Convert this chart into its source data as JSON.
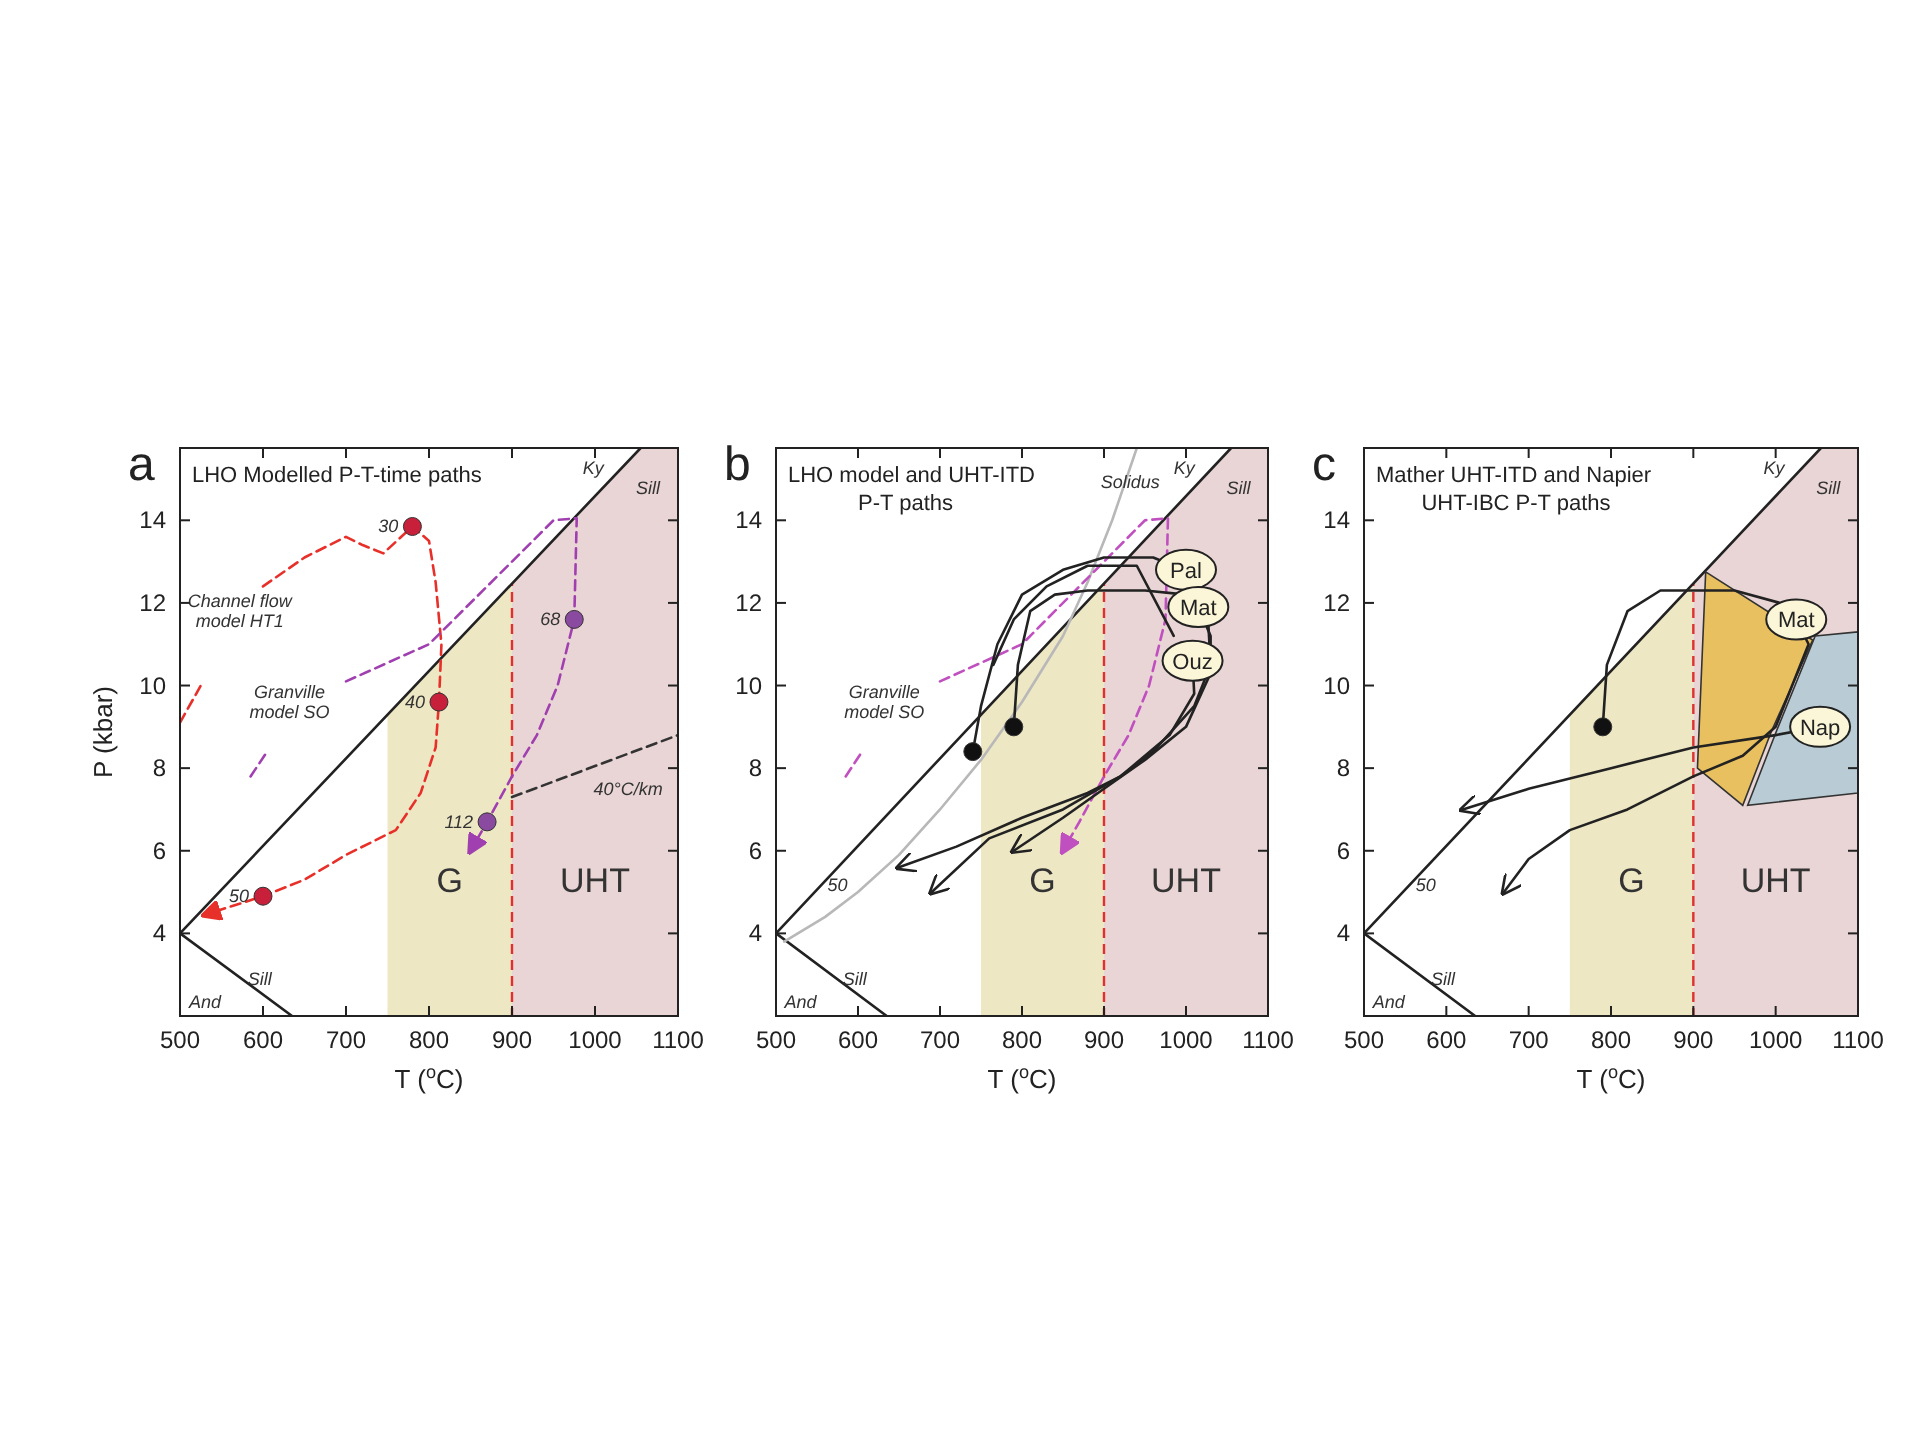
{
  "chart_data": [
    {
      "type": "line",
      "title": "a",
      "subtitle": "LHO Modelled P-T-time paths",
      "xlabel": "T ($^{o}$C)",
      "ylabel": "P (kbar)",
      "xlim": [
        500,
        1100
      ],
      "ylim": [
        2,
        15.75
      ],
      "xticks": [
        500,
        600,
        700,
        800,
        900,
        1000,
        1100
      ],
      "yticks": [
        4,
        6,
        8,
        10,
        12,
        14
      ],
      "bands": [
        {
          "axis": "x",
          "from": 750,
          "to": 900,
          "label": "G",
          "color": "#ede7c4"
        },
        {
          "axis": "x",
          "from": 900,
          "to": 1100,
          "label": "UHT",
          "color": "#e9d5d5"
        }
      ],
      "ref_lines": [
        {
          "axis": "x",
          "value": 900,
          "color": "#e03030",
          "line_style": "dashed"
        }
      ],
      "series": [
        {
          "color": "#222222",
          "x": [
            500,
            1055
          ],
          "values": [
            4,
            15.75
          ]
        },
        {
          "color": "#222222",
          "x": [
            500,
            635
          ],
          "values": [
            4,
            2
          ]
        },
        {
          "color": "#e8302a",
          "line_style": "dashed",
          "x": [
            500,
            525,
            545,
            600,
            650,
            700,
            720,
            745,
            780,
            800,
            808,
            815,
            812,
            808,
            790,
            760,
            700,
            650,
            600,
            530
          ],
          "values": [
            9.1,
            10,
            null,
            12.4,
            13.1,
            13.6,
            13.4,
            13.2,
            13.85,
            13.5,
            12.5,
            11,
            9.6,
            8.5,
            7.4,
            6.5,
            5.9,
            5.3,
            4.9,
            4.45
          ]
        },
        {
          "color": "#a040b0",
          "line_style": "dashed",
          "x": [
            585,
            605,
            640,
            700,
            800,
            900,
            950,
            978,
            975,
            955,
            930,
            900,
            870,
            850
          ],
          "values": [
            7.8,
            8.4,
            null,
            10.1,
            11,
            13,
            14,
            14.05,
            11.6,
            10,
            8.8,
            7.8,
            6.7,
            6
          ]
        },
        {
          "color": "#333333",
          "line_style": "dashed",
          "x": [
            900,
            1100
          ],
          "values": [
            7.3,
            8.8
          ]
        },
        {
          "type": "scatter",
          "color": "#c8203a",
          "marker": "circle",
          "x": [
            780,
            812,
            600
          ],
          "values": [
            13.85,
            9.6,
            4.9
          ]
        },
        {
          "type": "scatter",
          "color": "#8a4aa0",
          "marker": "circle",
          "x": [
            975,
            870
          ],
          "values": [
            11.6,
            6.7
          ]
        }
      ],
      "annotations": [
        {
          "text": "30",
          "x": 780,
          "y": 13.85
        },
        {
          "text": "40",
          "x": 812,
          "y": 9.6
        },
        {
          "text": "50",
          "x": 600,
          "y": 4.9
        },
        {
          "text": "68",
          "x": 975,
          "y": 11.6
        },
        {
          "text": "112",
          "x": 870,
          "y": 6.7
        },
        "40°C/km",
        "Channel flow\nmodel HT1",
        "Granville\nmodel SO",
        "Ky",
        "Sill",
        "And",
        "Sill"
      ]
    },
    {
      "type": "line",
      "title": "b",
      "subtitle": "LHO model and UHT-ITD\nP-T paths",
      "xlabel": "T ($^{o}$C)",
      "xlim": [
        500,
        1100
      ],
      "ylim": [
        2,
        15.75
      ],
      "xticks": [
        500,
        600,
        700,
        800,
        900,
        1000,
        1100
      ],
      "yticks": [
        4,
        6,
        8,
        10,
        12,
        14
      ],
      "bands": [
        {
          "axis": "x",
          "from": 750,
          "to": 900,
          "label": "G",
          "color": "#ede7c4"
        },
        {
          "axis": "x",
          "from": 900,
          "to": 1100,
          "label": "UHT",
          "color": "#e9d5d5"
        }
      ],
      "ref_lines": [
        {
          "axis": "x",
          "value": 900,
          "color": "#e03030",
          "line_style": "dashed"
        }
      ],
      "series": [
        {
          "color": "#222222",
          "x": [
            500,
            1055
          ],
          "values": [
            4,
            15.75
          ]
        },
        {
          "color": "#222222",
          "x": [
            500,
            635
          ],
          "values": [
            4,
            2
          ]
        },
        {
          "color": "#b8b8b8",
          "x": [
            510,
            560,
            600,
            650,
            700,
            750,
            800,
            850,
            880,
            910,
            940
          ],
          "values": [
            3.8,
            4.4,
            5.0,
            5.9,
            7.0,
            8.2,
            9.6,
            11.2,
            12.5,
            14,
            15.75
          ]
        },
        {
          "color": "#c050c0",
          "line_style": "dashed",
          "x": [
            585,
            605,
            640,
            700,
            800,
            900,
            950,
            978,
            975,
            955,
            930,
            900,
            870,
            850
          ],
          "values": [
            7.8,
            8.4,
            null,
            10.1,
            11,
            13,
            14,
            14.05,
            11.6,
            10,
            8.8,
            7.8,
            6.7,
            6
          ]
        },
        {
          "color": "#222222",
          "x": [
            740,
            750,
            770,
            800,
            850,
            900,
            960,
            985
          ],
          "values": [
            8.4,
            9.5,
            11,
            12.2,
            12.8,
            13.1,
            13.1,
            12.9
          ]
        },
        {
          "color": "#222222",
          "x": [
            790,
            795,
            810,
            840,
            880,
            950,
            1000
          ],
          "values": [
            9,
            10.5,
            11.8,
            12.2,
            12.3,
            12.3,
            12.2
          ]
        },
        {
          "color": "#222222",
          "x": [
            765,
            790,
            830,
            880,
            940,
            985
          ],
          "values": [
            10.5,
            11.6,
            12.4,
            12.9,
            12.9,
            11.2
          ]
        },
        {
          "name": "Pal",
          "color": "#222222",
          "x": [
            1000,
            1025,
            1030,
            1010,
            960,
            920,
            880,
            800,
            720,
            650
          ],
          "values": [
            12.8,
            12.3,
            10.5,
            9.5,
            8.4,
            7.8,
            7.4,
            6.8,
            6.1,
            5.6
          ]
        },
        {
          "name": "Mat",
          "color": "#222222",
          "x": [
            1015,
            1030,
            1030,
            1000,
            950,
            900,
            850,
            790
          ],
          "values": [
            11.9,
            11.2,
            10.3,
            9,
            8.2,
            7.5,
            6.8,
            6.0
          ]
        },
        {
          "name": "Ouz",
          "color": "#222222",
          "x": [
            1008,
            1010,
            980,
            920,
            850,
            760,
            690
          ],
          "values": [
            10.6,
            9.8,
            8.8,
            7.8,
            7.0,
            6.3,
            5.0
          ]
        },
        {
          "type": "scatter",
          "color": "#111111",
          "marker": "circle",
          "x": [
            740,
            790
          ],
          "values": [
            8.4,
            9
          ]
        }
      ],
      "annotations": [
        "Solidus",
        "50",
        "Granville\nmodel SO",
        "Ky",
        "Sill",
        "And",
        "Sill"
      ]
    },
    {
      "type": "line",
      "title": "c",
      "subtitle": "Mather UHT-ITD and Napier\nUHT-IBC P-T paths",
      "xlabel": "T ($^{o}$C)",
      "xlim": [
        500,
        1100
      ],
      "ylim": [
        2,
        15.75
      ],
      "xticks": [
        500,
        600,
        700,
        800,
        900,
        1000,
        1100
      ],
      "yticks": [
        4,
        6,
        8,
        10,
        12,
        14
      ],
      "bands": [
        {
          "axis": "x",
          "from": 750,
          "to": 900,
          "label": "G",
          "color": "#ede7c4"
        },
        {
          "axis": "x",
          "from": 900,
          "to": 1100,
          "label": "UHT",
          "color": "#e9d5d5"
        }
      ],
      "ref_lines": [
        {
          "axis": "x",
          "value": 900,
          "color": "#e03030",
          "line_style": "dashed"
        }
      ],
      "series": [
        {
          "color": "#222222",
          "x": [
            500,
            1055
          ],
          "values": [
            4,
            15.75
          ]
        },
        {
          "color": "#222222",
          "x": [
            500,
            635
          ],
          "values": [
            4,
            2
          ]
        },
        {
          "type": "area",
          "color": "#b9ccd6",
          "x": [
            1048,
            1100,
            1100,
            966,
            1001
          ],
          "values": [
            11.2,
            11.3,
            7.4,
            7.1,
            8.9
          ]
        },
        {
          "type": "area",
          "color": "#e8c060",
          "x": [
            915,
            1045,
            995,
            960,
            905
          ],
          "values": [
            12.75,
            11.1,
            8.9,
            7.1,
            8.0
          ]
        },
        {
          "color": "#222222",
          "x": [
            790,
            795,
            820,
            860,
            950,
            1005
          ],
          "values": [
            9,
            10.5,
            11.8,
            12.3,
            12.3,
            12.0
          ]
        },
        {
          "name": "Mat",
          "color": "#222222",
          "x": [
            1025,
            1040,
            1000,
            960,
            900,
            820,
            750,
            700,
            670
          ],
          "values": [
            11.6,
            11.0,
            9,
            8.3,
            7.8,
            7.0,
            6.5,
            5.8,
            5.0
          ]
        },
        {
          "name": "Nap",
          "color": "#222222",
          "x": [
            1054,
            1000,
            900,
            800,
            700,
            620
          ],
          "values": [
            9,
            8.8,
            8.5,
            8.0,
            7.5,
            7.0
          ]
        },
        {
          "type": "scatter",
          "color": "#111111",
          "marker": "circle",
          "x": [
            790
          ],
          "values": [
            9
          ]
        }
      ],
      "annotations": [
        "50",
        "Ky",
        "Sill",
        "And",
        "Sill"
      ]
    }
  ]
}
